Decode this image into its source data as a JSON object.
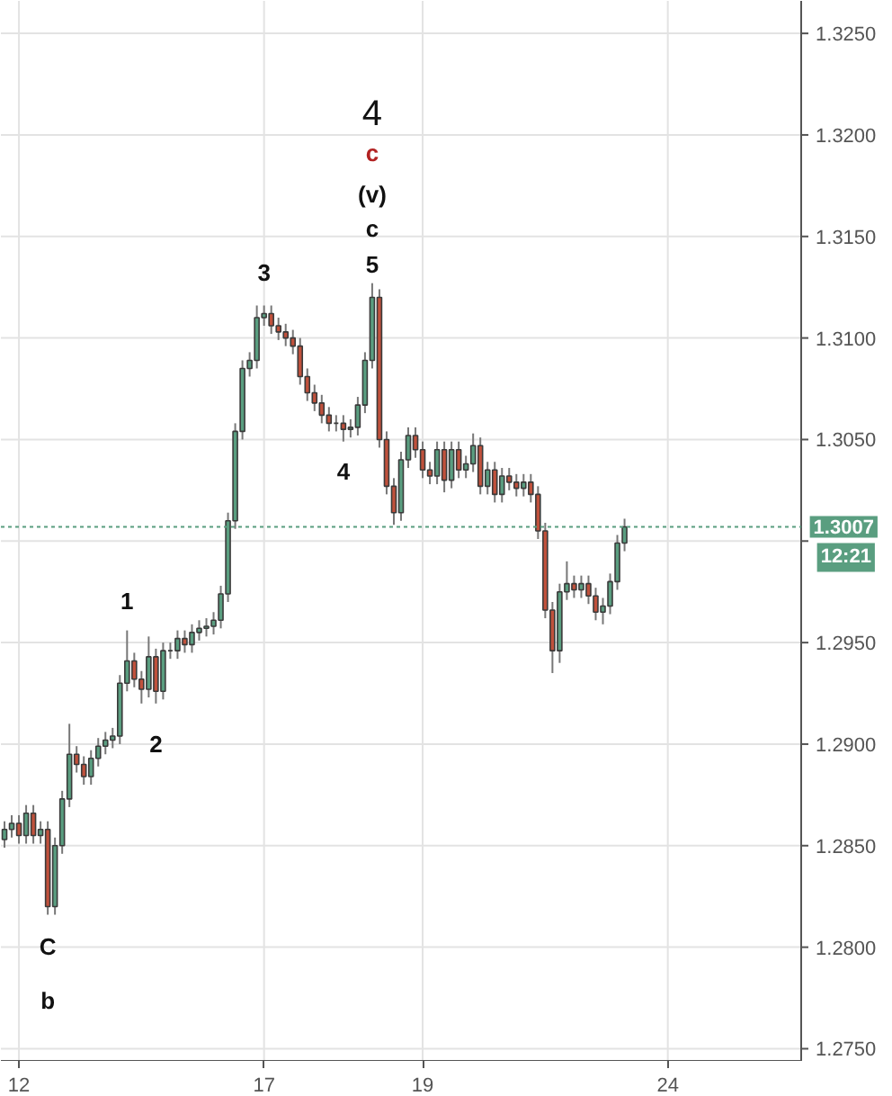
{
  "chart_data": {
    "type": "candlestick",
    "categories": [
      null,
      null,
      "12",
      null,
      null,
      null,
      null,
      null,
      null,
      null,
      null,
      null,
      null,
      null,
      null,
      null,
      null,
      null,
      null,
      null,
      null,
      null,
      null,
      null,
      null,
      null,
      null,
      null,
      null,
      null,
      null,
      null,
      null,
      null,
      null,
      null,
      "17",
      null,
      null,
      null,
      null,
      null,
      null,
      null,
      null,
      null,
      null,
      null,
      null,
      null,
      null,
      null,
      null,
      null,
      null,
      null,
      null,
      null,
      "19",
      null,
      null,
      null,
      null,
      null,
      null,
      null,
      null,
      null,
      null,
      null,
      null,
      null,
      null,
      null,
      null,
      null,
      null,
      null,
      null,
      null,
      null,
      null,
      null,
      null,
      null,
      null,
      null,
      null,
      null,
      null,
      null,
      null,
      "24",
      null,
      null,
      null,
      null,
      null,
      null,
      null,
      null,
      null,
      null,
      null,
      null,
      null,
      null,
      null,
      null,
      null,
      null
    ],
    "ohlc": [
      [
        1.2853,
        1.2862,
        1.2849,
        1.2858
      ],
      [
        1.2858,
        1.2865,
        1.2854,
        1.2861
      ],
      [
        1.2861,
        1.2865,
        1.2851,
        1.2855
      ],
      [
        1.2855,
        1.287,
        1.2851,
        1.2866
      ],
      [
        1.2866,
        1.287,
        1.2851,
        1.2855
      ],
      [
        1.2855,
        1.2862,
        1.2851,
        1.2858
      ],
      [
        1.2858,
        1.2862,
        1.2816,
        1.282
      ],
      [
        1.282,
        1.2854,
        1.2816,
        1.285
      ],
      [
        1.285,
        1.2877,
        1.2846,
        1.2873
      ],
      [
        1.2873,
        1.291,
        1.2869,
        1.2895
      ],
      [
        1.2895,
        1.2899,
        1.2886,
        1.289
      ],
      [
        1.289,
        1.2894,
        1.288,
        1.2884
      ],
      [
        1.2884,
        1.2897,
        1.288,
        1.2893
      ],
      [
        1.2893,
        1.2903,
        1.2889,
        1.2899
      ],
      [
        1.2899,
        1.2906,
        1.2895,
        1.2902
      ],
      [
        1.2902,
        1.2908,
        1.2898,
        1.2904
      ],
      [
        1.2904,
        1.2934,
        1.29,
        1.293
      ],
      [
        1.293,
        1.2956,
        1.2926,
        1.2941
      ],
      [
        1.2941,
        1.2945,
        1.2928,
        1.2932
      ],
      [
        1.2932,
        1.2936,
        1.292,
        1.2927
      ],
      [
        1.2927,
        1.2953,
        1.2923,
        1.2943
      ],
      [
        1.2943,
        1.2947,
        1.292,
        1.2926
      ],
      [
        1.2926,
        1.295,
        1.2922,
        1.2946
      ],
      [
        1.2946,
        1.295,
        1.2942,
        1.2946
      ],
      [
        1.2946,
        1.2956,
        1.2942,
        1.2952
      ],
      [
        1.2952,
        1.2956,
        1.2945,
        1.2949
      ],
      [
        1.2949,
        1.2959,
        1.2945,
        1.2955
      ],
      [
        1.2955,
        1.2961,
        1.2951,
        1.2957
      ],
      [
        1.2957,
        1.2962,
        1.2953,
        1.2958
      ],
      [
        1.2958,
        1.2965,
        1.2954,
        1.2961
      ],
      [
        1.2961,
        1.2978,
        1.2957,
        1.2974
      ],
      [
        1.2974,
        1.3014,
        1.297,
        1.301
      ],
      [
        1.301,
        1.3058,
        1.3006,
        1.3054
      ],
      [
        1.3054,
        1.3089,
        1.305,
        1.3085
      ],
      [
        1.3085,
        1.3093,
        1.3081,
        1.3089
      ],
      [
        1.3089,
        1.3116,
        1.3085,
        1.311
      ],
      [
        1.311,
        1.3116,
        1.3106,
        1.3112
      ],
      [
        1.3112,
        1.3116,
        1.3102,
        1.3106
      ],
      [
        1.3106,
        1.311,
        1.3099,
        1.3103
      ],
      [
        1.3103,
        1.3107,
        1.3096,
        1.31
      ],
      [
        1.31,
        1.3104,
        1.3092,
        1.3096
      ],
      [
        1.3096,
        1.31,
        1.3077,
        1.3081
      ],
      [
        1.3081,
        1.3085,
        1.3069,
        1.3073
      ],
      [
        1.3073,
        1.3077,
        1.3064,
        1.3068
      ],
      [
        1.3068,
        1.3072,
        1.3058,
        1.3062
      ],
      [
        1.3062,
        1.3066,
        1.3054,
        1.3058
      ],
      [
        1.3058,
        1.3062,
        1.3054,
        1.3058
      ],
      [
        1.3058,
        1.3062,
        1.3049,
        1.3055
      ],
      [
        1.3055,
        1.306,
        1.3051,
        1.3056
      ],
      [
        1.3056,
        1.3071,
        1.3052,
        1.3067
      ],
      [
        1.3067,
        1.3093,
        1.3063,
        1.3089
      ],
      [
        1.3089,
        1.3127,
        1.3085,
        1.312
      ],
      [
        1.312,
        1.3124,
        1.3046,
        1.305
      ],
      [
        1.305,
        1.3054,
        1.3023,
        1.3027
      ],
      [
        1.3027,
        1.3031,
        1.3008,
        1.3014
      ],
      [
        1.3014,
        1.3044,
        1.301,
        1.304
      ],
      [
        1.304,
        1.3056,
        1.3036,
        1.3052
      ],
      [
        1.3052,
        1.3056,
        1.3041,
        1.3045
      ],
      [
        1.3045,
        1.3049,
        1.3031,
        1.3035
      ],
      [
        1.3035,
        1.3039,
        1.3028,
        1.3032
      ],
      [
        1.3032,
        1.3049,
        1.3028,
        1.3045
      ],
      [
        1.3045,
        1.3049,
        1.3024,
        1.303
      ],
      [
        1.303,
        1.3049,
        1.3026,
        1.3045
      ],
      [
        1.3045,
        1.3049,
        1.3031,
        1.3035
      ],
      [
        1.3035,
        1.3042,
        1.3031,
        1.3038
      ],
      [
        1.3038,
        1.3053,
        1.3034,
        1.3047
      ],
      [
        1.3047,
        1.3051,
        1.3023,
        1.3027
      ],
      [
        1.3027,
        1.3039,
        1.3023,
        1.3035
      ],
      [
        1.3035,
        1.3039,
        1.3019,
        1.3023
      ],
      [
        1.3023,
        1.3036,
        1.3019,
        1.3032
      ],
      [
        1.3032,
        1.3036,
        1.3025,
        1.3029
      ],
      [
        1.3029,
        1.3033,
        1.3022,
        1.3026
      ],
      [
        1.3026,
        1.3033,
        1.3022,
        1.3029
      ],
      [
        1.3029,
        1.3033,
        1.3019,
        1.3023
      ],
      [
        1.3023,
        1.3027,
        1.3001,
        1.3005
      ],
      [
        1.3005,
        1.3009,
        1.2962,
        1.2966
      ],
      [
        1.2966,
        1.297,
        1.2935,
        1.2946
      ],
      [
        1.2946,
        1.2979,
        1.294,
        1.2975
      ],
      [
        1.2975,
        1.299,
        1.2971,
        1.2979
      ],
      [
        1.2979,
        1.2983,
        1.2972,
        1.2976
      ],
      [
        1.2976,
        1.2983,
        1.2972,
        1.2979
      ],
      [
        1.2979,
        1.2983,
        1.2969,
        1.2973
      ],
      [
        1.2973,
        1.2977,
        1.2961,
        1.2965
      ],
      [
        1.2965,
        1.2972,
        1.2959,
        1.2968
      ],
      [
        1.2968,
        1.2984,
        1.2964,
        1.298
      ],
      [
        1.298,
        1.3003,
        1.2976,
        1.2999
      ],
      [
        1.2999,
        1.3011,
        1.2995,
        1.3007
      ],
      null,
      null,
      null,
      null,
      null,
      null,
      null,
      null,
      null,
      null,
      null,
      null,
      null,
      null,
      null,
      null,
      null,
      null,
      null,
      null,
      null,
      null,
      null,
      null
    ],
    "ylim": [
      1.2744,
      1.3266
    ],
    "yticks": [
      {
        "value": 1.275,
        "label": "1.2750"
      },
      {
        "value": 1.28,
        "label": "1.2800"
      },
      {
        "value": 1.285,
        "label": "1.2850"
      },
      {
        "value": 1.29,
        "label": "1.2900"
      },
      {
        "value": 1.295,
        "label": "1.2950"
      },
      {
        "value": 1.3,
        "label": null
      },
      {
        "value": 1.305,
        "label": "1.3050"
      },
      {
        "value": 1.31,
        "label": "1.3100"
      },
      {
        "value": 1.315,
        "label": "1.3150"
      },
      {
        "value": 1.32,
        "label": "1.3200"
      },
      {
        "value": 1.325,
        "label": "1.3250"
      }
    ],
    "grid": true,
    "ref_lines": [
      {
        "axis": "y",
        "value": 1.3007,
        "label": "1.3007",
        "color": "#5a9e80",
        "line_style": "dotted"
      }
    ],
    "annotations": [
      "4",
      "c",
      "(v)",
      "c",
      "5",
      "3",
      "4",
      "1",
      "2",
      "C",
      "b",
      "12:21"
    ]
  }
}
